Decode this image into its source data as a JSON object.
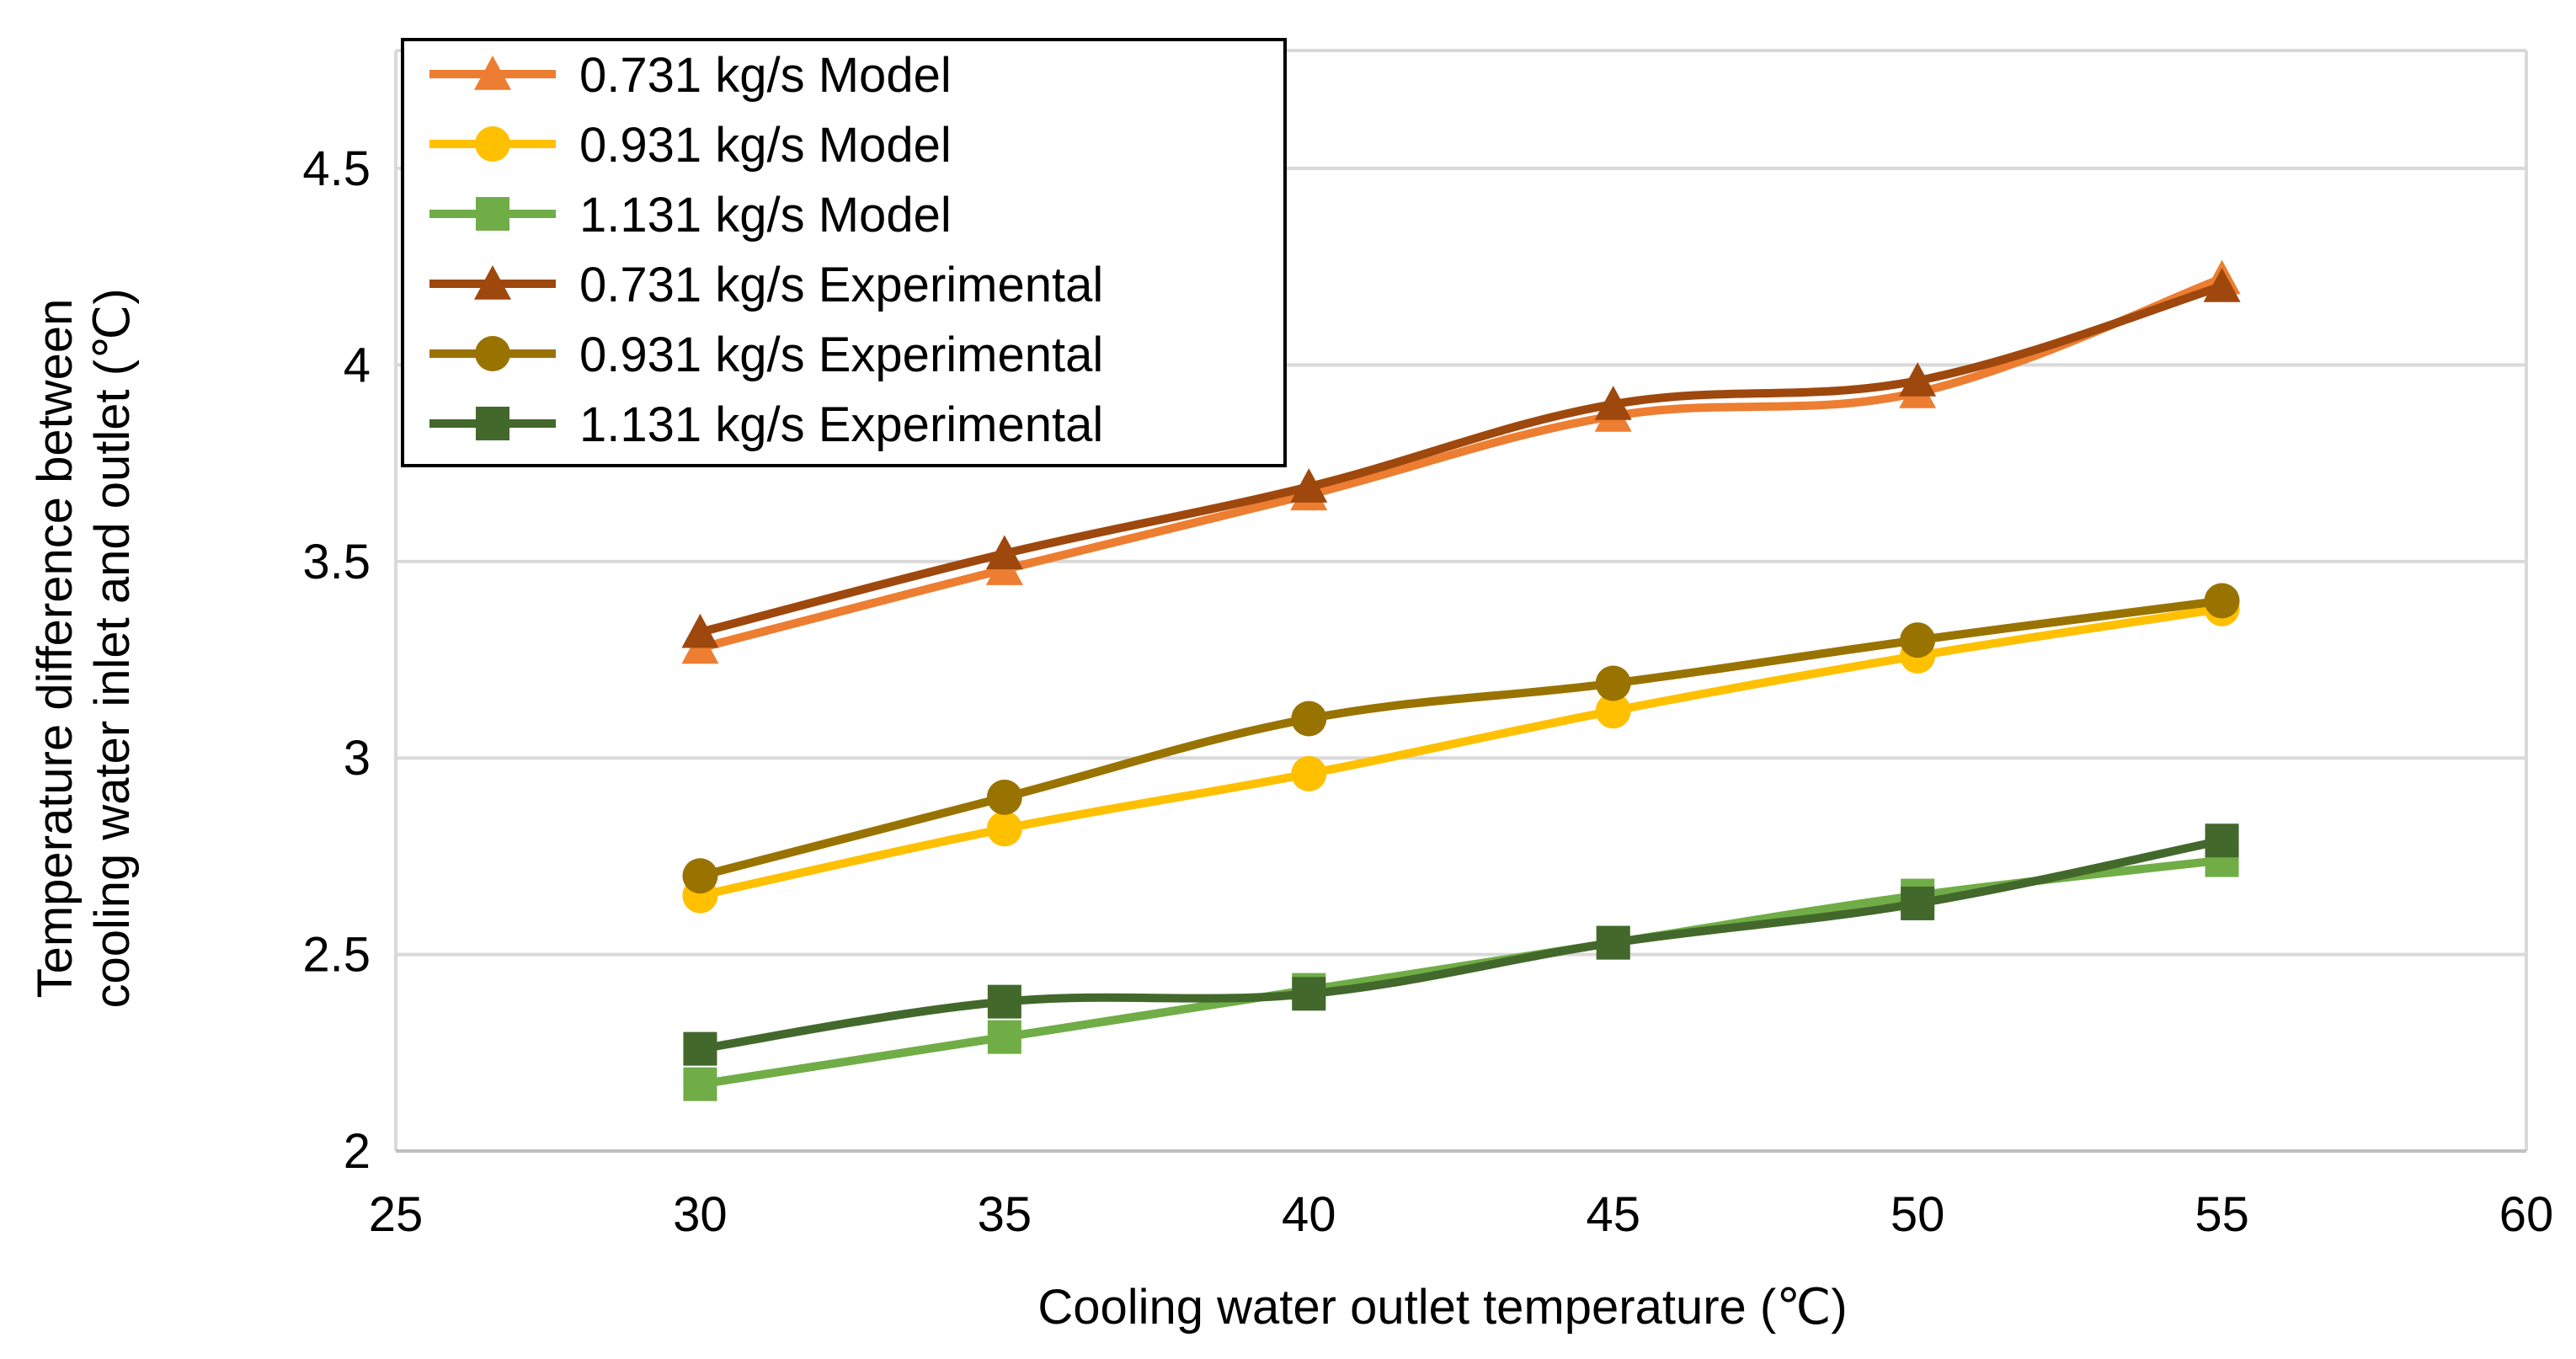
{
  "chart_data": {
    "type": "line",
    "title": "",
    "xlabel": "Cooling water outlet temperature (℃)",
    "ylabel_lines": [
      "Temperature difference between",
      "cooling water inlet and outlet (℃)"
    ],
    "xlim": [
      25,
      60
    ],
    "ylim": [
      2,
      4.8
    ],
    "xticks": [
      25,
      30,
      35,
      40,
      45,
      50,
      55,
      60
    ],
    "yticks": [
      2,
      2.5,
      3,
      3.5,
      4,
      4.5
    ],
    "ytick_labels": [
      "2",
      "2.5",
      "3",
      "3.5",
      "4",
      "4.5"
    ],
    "grid": "horizontal",
    "legend_position": "top-left",
    "x": [
      30,
      35,
      40,
      45,
      50,
      55
    ],
    "series": [
      {
        "name": "0.731 kg/s Model",
        "color": "#ED7D31",
        "marker": "triangle",
        "values": [
          3.28,
          3.48,
          3.67,
          3.87,
          3.93,
          4.22
        ]
      },
      {
        "name": "0.931 kg/s Model",
        "color": "#FFC000",
        "marker": "circle",
        "values": [
          2.65,
          2.82,
          2.96,
          3.12,
          3.26,
          3.38
        ]
      },
      {
        "name": "1.131 kg/s Model",
        "color": "#70AD47",
        "marker": "square",
        "values": [
          2.17,
          2.29,
          2.41,
          2.53,
          2.65,
          2.74
        ]
      },
      {
        "name": "0.731 kg/s Experimental",
        "color": "#9E480E",
        "marker": "triangle",
        "values": [
          3.32,
          3.52,
          3.69,
          3.9,
          3.96,
          4.2
        ]
      },
      {
        "name": "0.931 kg/s Experimental",
        "color": "#997300",
        "marker": "circle",
        "values": [
          2.7,
          2.9,
          3.1,
          3.19,
          3.3,
          3.4
        ]
      },
      {
        "name": "1.131 kg/s Experimental",
        "color": "#43682B",
        "marker": "square",
        "values": [
          2.26,
          2.38,
          2.4,
          2.53,
          2.63,
          2.79
        ]
      }
    ]
  }
}
